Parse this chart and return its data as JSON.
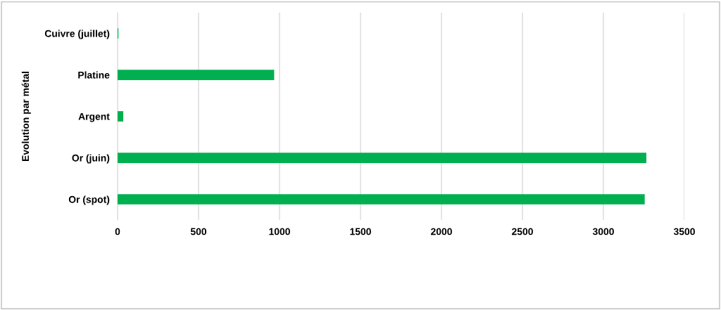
{
  "chart_data": {
    "type": "bar",
    "orientation": "horizontal",
    "ylabel": "Evolution par métal",
    "categories": [
      "Cuivre (juillet)",
      "Platine",
      "Argent",
      "Or (juin)",
      "Or (spot)"
    ],
    "values": [
      5,
      967,
      35,
      3265,
      3255
    ],
    "color": "#00b050",
    "xlim": [
      0,
      3500
    ],
    "xticks": [
      0,
      500,
      1000,
      1500,
      2000,
      2500,
      3000,
      3500
    ],
    "grid": "x",
    "legend": false
  }
}
